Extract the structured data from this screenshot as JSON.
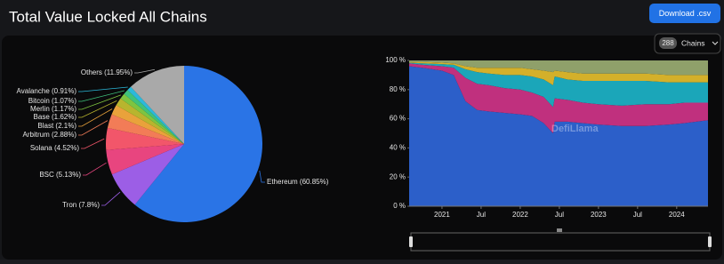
{
  "header": {
    "title": "Total Value Locked All Chains",
    "button": "Download .csv"
  },
  "chains_selector": {
    "count": "288",
    "label": "Chains"
  },
  "chart_data": [
    {
      "type": "pie",
      "value_labels": [
        "Ethereum (60.85%)",
        "Tron (7.8%)",
        "BSC (5.13%)",
        "Solana (4.52%)",
        "Arbitrum (2.88%)",
        "Blast (2.1%)",
        "Base (1.62%)",
        "Merlin (1.17%)",
        "Bitcoin (1.07%)",
        "Avalanche (0.91%)",
        "Others (11.95%)"
      ],
      "values": [
        60.85,
        7.8,
        5.13,
        4.52,
        2.88,
        2.1,
        1.62,
        1.17,
        1.07,
        0.91,
        11.95
      ],
      "colors": [
        "#2a74e6",
        "#9c5ee6",
        "#e8457f",
        "#f2566a",
        "#f27c57",
        "#e9a23b",
        "#b8b52e",
        "#7ec440",
        "#3fc27b",
        "#2bb9da",
        "#a9a9a9"
      ]
    },
    {
      "type": "stacked_area",
      "watermark": "DefiLlama",
      "x": [
        2020.58,
        2020.75,
        2021.0,
        2021.15,
        2021.3,
        2021.45,
        2021.6,
        2021.8,
        2022.0,
        2022.15,
        2022.3,
        2022.42,
        2022.44,
        2022.6,
        2022.8,
        2023.0,
        2023.3,
        2023.6,
        2023.9,
        2024.1,
        2024.4
      ],
      "series": [
        {
          "color": "#2c5fc9",
          "values": [
            96,
            95,
            93,
            90,
            72,
            66,
            65,
            64,
            63,
            62,
            57,
            50,
            58,
            58,
            57,
            56,
            55,
            55,
            56,
            57,
            59
          ]
        },
        {
          "color": "#c0307e",
          "values": [
            2,
            2,
            3,
            5,
            16,
            18,
            18,
            17,
            17,
            16,
            18,
            18,
            16,
            15,
            14,
            14,
            14,
            15,
            14,
            14,
            12
          ]
        },
        {
          "color": "#1ba6b9",
          "values": [
            0.5,
            1,
            1.5,
            2,
            6,
            8,
            8,
            9,
            10,
            11,
            12,
            15,
            15,
            14,
            15,
            16,
            17,
            16,
            15,
            14,
            14
          ]
        },
        {
          "color": "#d4b02a",
          "values": [
            0.5,
            1,
            1,
            1,
            2,
            3,
            4,
            5,
            5,
            5,
            6,
            9,
            4,
            5,
            5,
            5,
            5,
            5,
            5,
            5,
            5
          ]
        },
        {
          "color": "#8fa06a",
          "values": [
            1,
            1,
            1.5,
            2,
            4,
            5,
            5,
            5,
            5,
            6,
            7,
            8,
            7,
            8,
            9,
            9,
            9,
            9,
            10,
            10,
            10
          ]
        }
      ],
      "xlim": [
        2020.58,
        2024.4
      ],
      "xticks": [
        2021,
        {
          "value": 2021.5,
          "label": "Jul"
        },
        2022,
        {
          "value": 2022.5,
          "label": "Jul"
        },
        2023,
        {
          "value": 2023.5,
          "label": "Jul"
        },
        2024
      ],
      "ylim": [
        0,
        100
      ],
      "yticks": [
        {
          "value": 0,
          "label": "0 %"
        },
        {
          "value": 20,
          "label": "20 %"
        },
        {
          "value": 40,
          "label": "40 %"
        },
        {
          "value": 60,
          "label": "60 %"
        },
        {
          "value": 80,
          "label": "80 %"
        },
        {
          "value": 100,
          "label": "100 %"
        }
      ],
      "grid": false
    }
  ]
}
